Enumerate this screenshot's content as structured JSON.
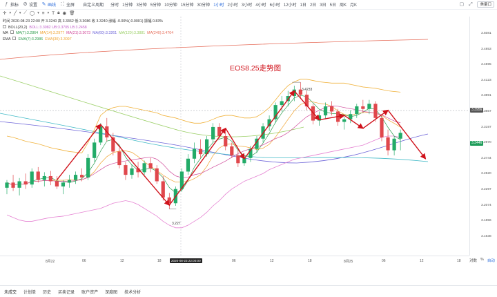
{
  "toolbar": {
    "items": [
      {
        "label": "指标",
        "icon": "indicator-icon"
      },
      {
        "label": "设置",
        "icon": "gear-icon"
      },
      {
        "label": "画线",
        "icon": "pencil-icon",
        "active": true
      },
      {
        "label": "全屏",
        "icon": "fullscreen-icon"
      }
    ],
    "custom_period": "自定义周期",
    "periods": [
      "分时",
      "1分钟",
      "3分钟",
      "5分钟",
      "10分钟",
      "15分钟",
      "30分钟",
      "1小时",
      "2小时",
      "3小时",
      "4小时",
      "6小时",
      "12小时",
      "1日",
      "2日",
      "3日",
      "5日",
      "周K",
      "月K"
    ],
    "active_period": "1小时",
    "select_label": "美量口"
  },
  "legend": {
    "time_row": "时间 2020-08-23 22:00  开 3.3240  高 3.3362  低 3.3086  收 3.3240  涨幅 -0.00%(-0.0001)  振幅 0.83%",
    "boll": {
      "name": "BOLL(20,2)",
      "values": "BOLL:3.3082  UB:3.3705  LB:3.2458"
    },
    "ma": {
      "name": "MA",
      "values": [
        {
          "text": "MA(7):3.2864",
          "color": "#2c9c4d"
        },
        {
          "text": "MA(14):3.2977",
          "color": "#f0a32f"
        },
        {
          "text": "MA(21):3.3073",
          "color": "#d04a9a"
        },
        {
          "text": "MA(60):3.3261",
          "color": "#6c63d8"
        },
        {
          "text": "MA(120):3.3881",
          "color": "#9bcf67"
        },
        {
          "text": "MA(240):3.4704",
          "color": "#e66d5a"
        }
      ]
    },
    "ema": {
      "name": "EMA",
      "values": [
        {
          "text": "EMA(7):3.2986",
          "color": "#2c9c4d"
        },
        {
          "text": "EMA(30):3.3097",
          "color": "#f0a32f"
        }
      ]
    }
  },
  "annotation": {
    "title": "EOS8.25走势图",
    "high_label": "3.4233",
    "low_label": "3.227"
  },
  "price_axis": {
    "ticks": [
      "3.5081",
      "3.4853",
      "3.4595",
      "3.4123",
      "3.3891",
      "3.3657",
      "3.3197",
      "3.2970",
      "3.2744",
      "3.2520",
      "3.2297",
      "3.2074",
      "3.1856",
      "3.1638"
    ]
  },
  "price_tags": [
    {
      "text": "3.3956",
      "color": "#555555"
    },
    {
      "text": "3.3446",
      "color": "#1f9d5a"
    }
  ],
  "time_axis": {
    "labels": [
      "8月22",
      "06",
      "12",
      "18",
      "2020-08-23 22:00:00",
      "06",
      "12",
      "18",
      "8月25",
      "06",
      "12",
      "18"
    ]
  },
  "axis_corner": {
    "log": "对数",
    "pct": "%",
    "auto": "自动"
  },
  "bottom_tabs": [
    "未成交",
    "计划单",
    "历史",
    "买卖记录",
    "账户资产",
    "深度图",
    "技术分析"
  ],
  "colors": {
    "up": "#22ab68",
    "down": "#e0474c",
    "accent": "#2f6fdc",
    "annotation": "#d0121b"
  },
  "chart_data": {
    "type": "candlestick",
    "symbol": "EOS",
    "interval": "1小时",
    "candles": [
      {
        "o": 3.26,
        "h": 3.272,
        "l": 3.25,
        "c": 3.268
      },
      {
        "o": 3.268,
        "h": 3.28,
        "l": 3.255,
        "c": 3.26
      },
      {
        "o": 3.26,
        "h": 3.275,
        "l": 3.248,
        "c": 3.27
      },
      {
        "o": 3.27,
        "h": 3.282,
        "l": 3.258,
        "c": 3.265
      },
      {
        "o": 3.265,
        "h": 3.29,
        "l": 3.26,
        "c": 3.285
      },
      {
        "o": 3.285,
        "h": 3.292,
        "l": 3.268,
        "c": 3.272
      },
      {
        "o": 3.272,
        "h": 3.284,
        "l": 3.262,
        "c": 3.278
      },
      {
        "o": 3.278,
        "h": 3.286,
        "l": 3.264,
        "c": 3.27
      },
      {
        "o": 3.27,
        "h": 3.278,
        "l": 3.258,
        "c": 3.262
      },
      {
        "o": 3.262,
        "h": 3.272,
        "l": 3.25,
        "c": 3.268
      },
      {
        "o": 3.268,
        "h": 3.28,
        "l": 3.26,
        "c": 3.272
      },
      {
        "o": 3.272,
        "h": 3.285,
        "l": 3.266,
        "c": 3.28
      },
      {
        "o": 3.28,
        "h": 3.29,
        "l": 3.27,
        "c": 3.276
      },
      {
        "o": 3.276,
        "h": 3.312,
        "l": 3.272,
        "c": 3.306
      },
      {
        "o": 3.306,
        "h": 3.336,
        "l": 3.3,
        "c": 3.33
      },
      {
        "o": 3.33,
        "h": 3.36,
        "l": 3.326,
        "c": 3.355
      },
      {
        "o": 3.355,
        "h": 3.368,
        "l": 3.332,
        "c": 3.338
      },
      {
        "o": 3.338,
        "h": 3.345,
        "l": 3.31,
        "c": 3.316
      },
      {
        "o": 3.316,
        "h": 3.322,
        "l": 3.29,
        "c": 3.295
      },
      {
        "o": 3.295,
        "h": 3.3,
        "l": 3.272,
        "c": 3.28
      },
      {
        "o": 3.28,
        "h": 3.296,
        "l": 3.274,
        "c": 3.29
      },
      {
        "o": 3.29,
        "h": 3.3,
        "l": 3.276,
        "c": 3.284
      },
      {
        "o": 3.284,
        "h": 3.302,
        "l": 3.28,
        "c": 3.298
      },
      {
        "o": 3.298,
        "h": 3.306,
        "l": 3.284,
        "c": 3.29
      },
      {
        "o": 3.29,
        "h": 3.295,
        "l": 3.266,
        "c": 3.27
      },
      {
        "o": 3.27,
        "h": 3.278,
        "l": 3.24,
        "c": 3.245
      },
      {
        "o": 3.245,
        "h": 3.252,
        "l": 3.227,
        "c": 3.236
      },
      {
        "o": 3.236,
        "h": 3.262,
        "l": 3.232,
        "c": 3.258
      },
      {
        "o": 3.258,
        "h": 3.29,
        "l": 3.254,
        "c": 3.285
      },
      {
        "o": 3.285,
        "h": 3.312,
        "l": 3.28,
        "c": 3.305
      },
      {
        "o": 3.305,
        "h": 3.33,
        "l": 3.298,
        "c": 3.32
      },
      {
        "o": 3.32,
        "h": 3.335,
        "l": 3.306,
        "c": 3.312
      },
      {
        "o": 3.312,
        "h": 3.34,
        "l": 3.308,
        "c": 3.335
      },
      {
        "o": 3.335,
        "h": 3.36,
        "l": 3.33,
        "c": 3.354
      },
      {
        "o": 3.354,
        "h": 3.36,
        "l": 3.336,
        "c": 3.34
      },
      {
        "o": 3.34,
        "h": 3.346,
        "l": 3.318,
        "c": 3.324
      },
      {
        "o": 3.324,
        "h": 3.33,
        "l": 3.306,
        "c": 3.31
      },
      {
        "o": 3.31,
        "h": 3.318,
        "l": 3.292,
        "c": 3.298
      },
      {
        "o": 3.298,
        "h": 3.31,
        "l": 3.294,
        "c": 3.306
      },
      {
        "o": 3.306,
        "h": 3.325,
        "l": 3.3,
        "c": 3.32
      },
      {
        "o": 3.32,
        "h": 3.34,
        "l": 3.314,
        "c": 3.336
      },
      {
        "o": 3.336,
        "h": 3.36,
        "l": 3.33,
        "c": 3.355
      },
      {
        "o": 3.355,
        "h": 3.372,
        "l": 3.348,
        "c": 3.366
      },
      {
        "o": 3.366,
        "h": 3.392,
        "l": 3.36,
        "c": 3.388
      },
      {
        "o": 3.388,
        "h": 3.402,
        "l": 3.378,
        "c": 3.394
      },
      {
        "o": 3.394,
        "h": 3.41,
        "l": 3.386,
        "c": 3.402
      },
      {
        "o": 3.402,
        "h": 3.418,
        "l": 3.394,
        "c": 3.412
      },
      {
        "o": 3.412,
        "h": 3.4233,
        "l": 3.398,
        "c": 3.404
      },
      {
        "o": 3.404,
        "h": 3.41,
        "l": 3.38,
        "c": 3.386
      },
      {
        "o": 3.386,
        "h": 3.39,
        "l": 3.358,
        "c": 3.364
      },
      {
        "o": 3.364,
        "h": 3.378,
        "l": 3.356,
        "c": 3.372
      },
      {
        "o": 3.372,
        "h": 3.392,
        "l": 3.366,
        "c": 3.386
      },
      {
        "o": 3.386,
        "h": 3.394,
        "l": 3.372,
        "c": 3.378
      },
      {
        "o": 3.378,
        "h": 3.382,
        "l": 3.356,
        "c": 3.362
      },
      {
        "o": 3.362,
        "h": 3.37,
        "l": 3.35,
        "c": 3.366
      },
      {
        "o": 3.366,
        "h": 3.38,
        "l": 3.36,
        "c": 3.374
      },
      {
        "o": 3.374,
        "h": 3.39,
        "l": 3.368,
        "c": 3.386
      },
      {
        "o": 3.386,
        "h": 3.396,
        "l": 3.376,
        "c": 3.382
      },
      {
        "o": 3.382,
        "h": 3.396,
        "l": 3.374,
        "c": 3.39
      },
      {
        "o": 3.39,
        "h": 3.394,
        "l": 3.362,
        "c": 3.368
      },
      {
        "o": 3.368,
        "h": 3.374,
        "l": 3.332,
        "c": 3.338
      },
      {
        "o": 3.338,
        "h": 3.35,
        "l": 3.31,
        "c": 3.318
      },
      {
        "o": 3.318,
        "h": 3.34,
        "l": 3.31,
        "c": 3.336
      },
      {
        "o": 3.336,
        "h": 3.35,
        "l": 3.318,
        "c": 3.345
      }
    ],
    "trend_path": [
      3.272,
      3.358,
      3.233,
      3.352,
      3.305,
      3.41,
      3.365,
      3.372,
      3.352,
      3.38,
      3.305
    ],
    "trend_path_index": [
      8,
      15,
      26,
      35,
      38,
      46,
      50,
      54,
      57,
      61,
      67
    ],
    "ylim": [
      3.155,
      3.525
    ],
    "boll_upper": [
      3.34,
      3.338,
      3.335,
      3.332,
      3.33,
      3.328,
      3.325,
      3.322,
      3.32,
      3.318,
      3.316,
      3.315,
      3.314,
      3.33,
      3.35,
      3.372,
      3.38,
      3.384,
      3.386,
      3.386,
      3.384,
      3.382,
      3.38,
      3.378,
      3.376,
      3.372,
      3.37,
      3.368,
      3.365,
      3.362,
      3.36,
      3.36,
      3.362,
      3.366,
      3.37,
      3.372,
      3.372,
      3.37,
      3.368,
      3.368,
      3.37,
      3.376,
      3.384,
      3.396,
      3.408,
      3.418,
      3.424,
      3.428,
      3.428,
      3.426,
      3.424,
      3.423,
      3.422,
      3.422,
      3.422,
      3.42,
      3.418,
      3.416,
      3.415,
      3.414,
      3.412,
      3.41,
      3.409,
      3.408
    ],
    "boll_lower": [
      3.218,
      3.214,
      3.21,
      3.208,
      3.208,
      3.21,
      3.212,
      3.214,
      3.215,
      3.216,
      3.218,
      3.22,
      3.222,
      3.224,
      3.226,
      3.228,
      3.232,
      3.236,
      3.238,
      3.24,
      3.238,
      3.234,
      3.228,
      3.222,
      3.216,
      3.208,
      3.202,
      3.198,
      3.198,
      3.202,
      3.208,
      3.214,
      3.222,
      3.232,
      3.24,
      3.25,
      3.258,
      3.264,
      3.27,
      3.274,
      3.278,
      3.282,
      3.288,
      3.292,
      3.296,
      3.3,
      3.304,
      3.306,
      3.308,
      3.31,
      3.312,
      3.314,
      3.316,
      3.318,
      3.32,
      3.322,
      3.324,
      3.326,
      3.33,
      3.334,
      3.338,
      3.34,
      3.34,
      3.338
    ]
  }
}
